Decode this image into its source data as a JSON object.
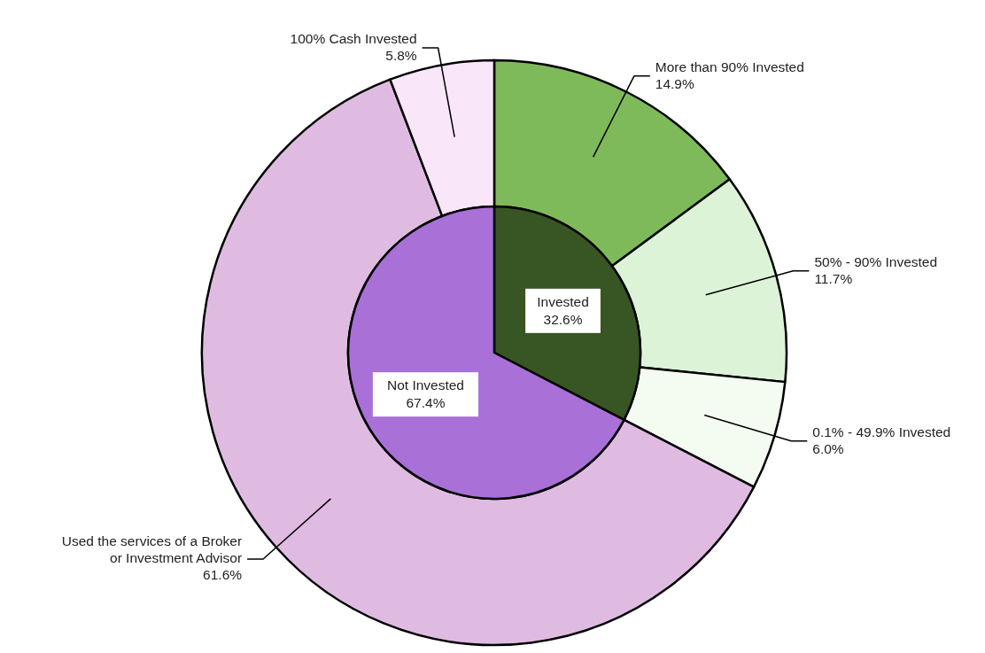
{
  "chart_data": [
    {
      "type": "donut",
      "categories": [
        "More than 90% Invested",
        "50% - 90% Invested",
        "0.1% - 49.9% Invested",
        "Used the services of a Broker or Investment Advisor",
        "100% Cash Invested"
      ],
      "values": [
        14.9,
        11.7,
        6.0,
        61.6,
        5.8
      ],
      "colors": [
        "#7fba5a",
        "#dcf3d8",
        "#f4fbf0",
        "#dfbbe2",
        "#f9e6f9"
      ],
      "value_labels": [
        "14.9%",
        "11.7%",
        "6.0%",
        "61.6%",
        "5.8%"
      ]
    },
    {
      "type": "pie",
      "categories": [
        "Invested",
        "Not Invested"
      ],
      "values": [
        32.6,
        67.4
      ],
      "colors": [
        "#375623",
        "#a970d8"
      ],
      "value_labels": [
        "32.6%",
        "67.4%"
      ]
    }
  ]
}
